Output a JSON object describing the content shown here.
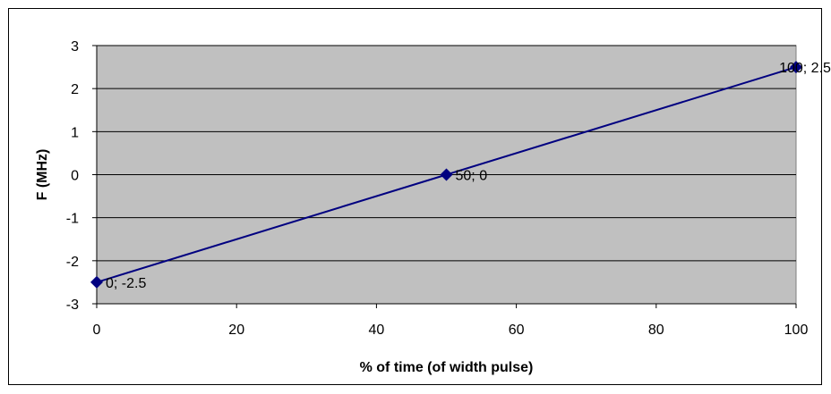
{
  "chart_data": {
    "type": "line",
    "xlabel": "% of time (of width pulse)",
    "ylabel": "F (MHz)",
    "xlim": [
      0,
      100
    ],
    "ylim": [
      -3,
      3
    ],
    "x_ticks": [
      "0",
      "20",
      "40",
      "60",
      "80",
      "100"
    ],
    "y_ticks": [
      "3",
      "2",
      "1",
      "0",
      "-1",
      "-2",
      "-3"
    ],
    "grid": "horizontal",
    "legend": "none",
    "series": [
      {
        "x": [
          0,
          50,
          100
        ],
        "y": [
          -2.5,
          0,
          2.5
        ],
        "data_labels": [
          "0; -2.5",
          "50; 0",
          "100; 2.5"
        ]
      }
    ],
    "colors": {
      "plot_background": "#c0c0c0",
      "line": "#000080",
      "marker": "#000080",
      "gridline": "#000000"
    }
  }
}
